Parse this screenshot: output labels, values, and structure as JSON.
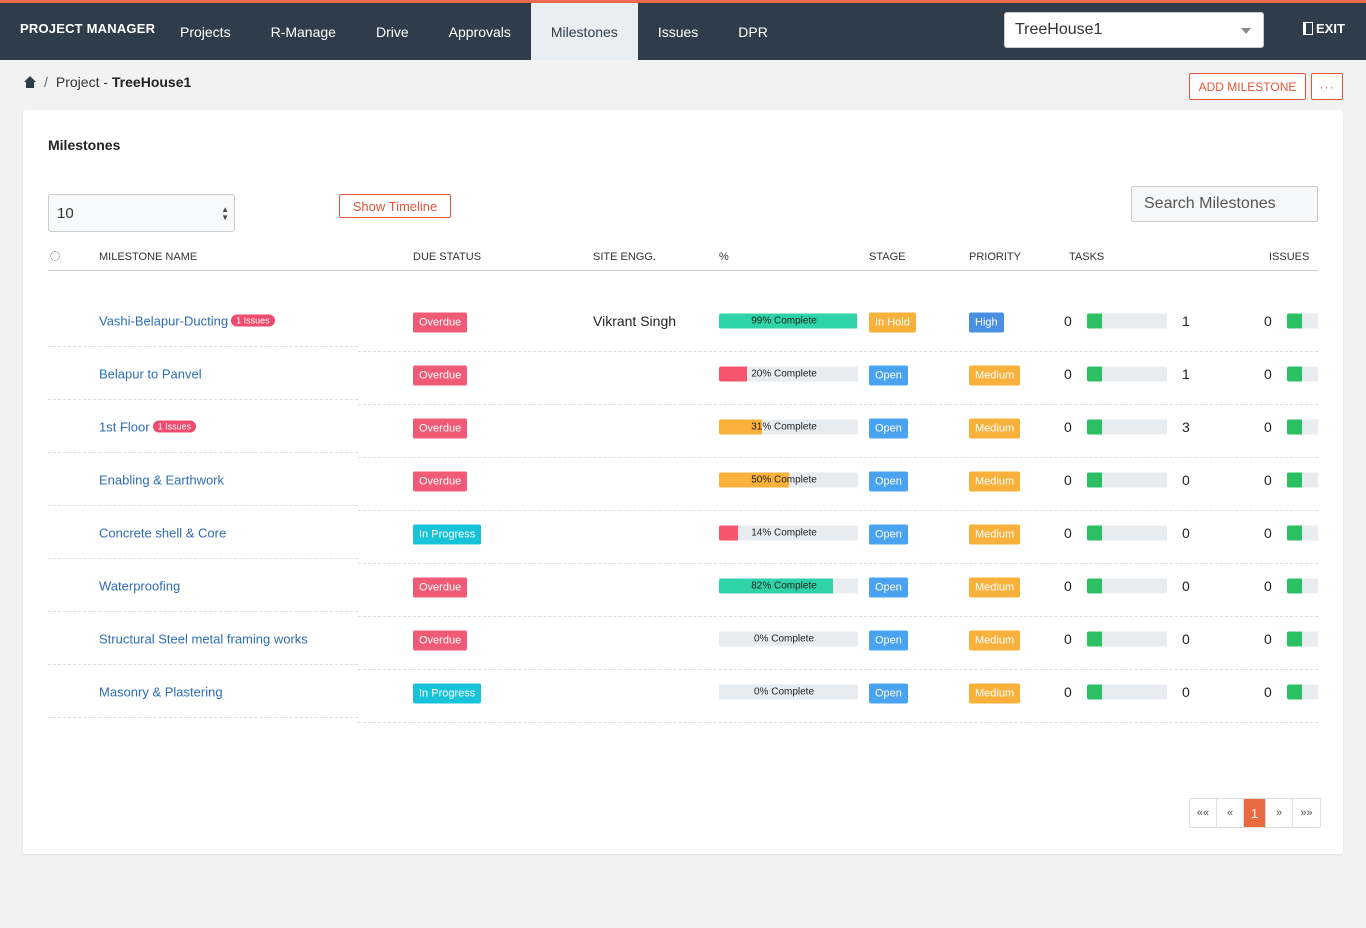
{
  "app": {
    "brand": "PROJECT MANAGER",
    "nav": [
      "Projects",
      "R-Manage",
      "Drive",
      "Approvals",
      "Milestones",
      "Issues",
      "DPR"
    ],
    "active_nav": "Milestones",
    "project_select": "TreeHouse1",
    "exit_label": "EXIT"
  },
  "breadcrumb": {
    "prefix": "Project - ",
    "project": "TreeHouse1"
  },
  "actions": {
    "add_milestone": "ADD MILESTONE",
    "more": "···"
  },
  "card": {
    "title": "Milestones",
    "page_size": "10",
    "show_timeline": "Show Timeline",
    "search_placeholder": "Search Milestones"
  },
  "table": {
    "columns": [
      "MILESTONE NAME",
      "DUE STATUS",
      "SITE ENGG.",
      "%",
      "STAGE",
      "PRIORITY",
      "TASKS",
      "ISSUES"
    ],
    "rows": [
      {
        "name": "Vashi-Belapur-Ducting",
        "issues_badge": "1 Issues",
        "due_status": "Overdue",
        "site_engg": "Vikrant Singh",
        "percent": 99,
        "percent_label": "99% Complete",
        "stage": "In Hold",
        "priority": "High",
        "tasks_open": "0",
        "tasks_done": "1",
        "issues": "0"
      },
      {
        "name": "Belapur to Panvel",
        "issues_badge": "",
        "due_status": "Overdue",
        "site_engg": "",
        "percent": 20,
        "percent_label": "20% Complete",
        "stage": "Open",
        "priority": "Medium",
        "tasks_open": "0",
        "tasks_done": "1",
        "issues": "0"
      },
      {
        "name": "1st Floor",
        "issues_badge": "1 Issues",
        "due_status": "Overdue",
        "site_engg": "",
        "percent": 31,
        "percent_label": "31% Complete",
        "stage": "Open",
        "priority": "Medium",
        "tasks_open": "0",
        "tasks_done": "3",
        "issues": "0"
      },
      {
        "name": "Enabling & Earthwork",
        "issues_badge": "",
        "due_status": "Overdue",
        "site_engg": "",
        "percent": 50,
        "percent_label": "50% Complete",
        "stage": "Open",
        "priority": "Medium",
        "tasks_open": "0",
        "tasks_done": "0",
        "issues": "0"
      },
      {
        "name": "Concrete shell & Core",
        "issues_badge": "",
        "due_status": "In Progress",
        "site_engg": "",
        "percent": 14,
        "percent_label": "14% Complete",
        "stage": "Open",
        "priority": "Medium",
        "tasks_open": "0",
        "tasks_done": "0",
        "issues": "0"
      },
      {
        "name": "Waterproofing",
        "issues_badge": "",
        "due_status": "Overdue",
        "site_engg": "",
        "percent": 82,
        "percent_label": "82% Complete",
        "stage": "Open",
        "priority": "Medium",
        "tasks_open": "0",
        "tasks_done": "0",
        "issues": "0"
      },
      {
        "name": "Structural Steel metal framing works",
        "issues_badge": "",
        "due_status": "Overdue",
        "site_engg": "",
        "percent": 0,
        "percent_label": "0% Complete",
        "stage": "Open",
        "priority": "Medium",
        "tasks_open": "0",
        "tasks_done": "0",
        "issues": "0"
      },
      {
        "name": "Masonry & Plastering",
        "issues_badge": "",
        "due_status": "In Progress",
        "site_engg": "",
        "percent": 0,
        "percent_label": "0% Complete",
        "stage": "Open",
        "priority": "Medium",
        "tasks_open": "0",
        "tasks_done": "0",
        "issues": "0"
      }
    ]
  },
  "pagination": {
    "first": "««",
    "prev": "«",
    "current": "1",
    "next": "»",
    "last": "»»"
  },
  "colors": {
    "accent": "#e2553b",
    "nav_bg": "#2f3d4a",
    "progress_green": "#2fd3a8",
    "progress_red": "#f5556e",
    "progress_orange": "#f9b13c",
    "bar_green": "#2bc063"
  }
}
